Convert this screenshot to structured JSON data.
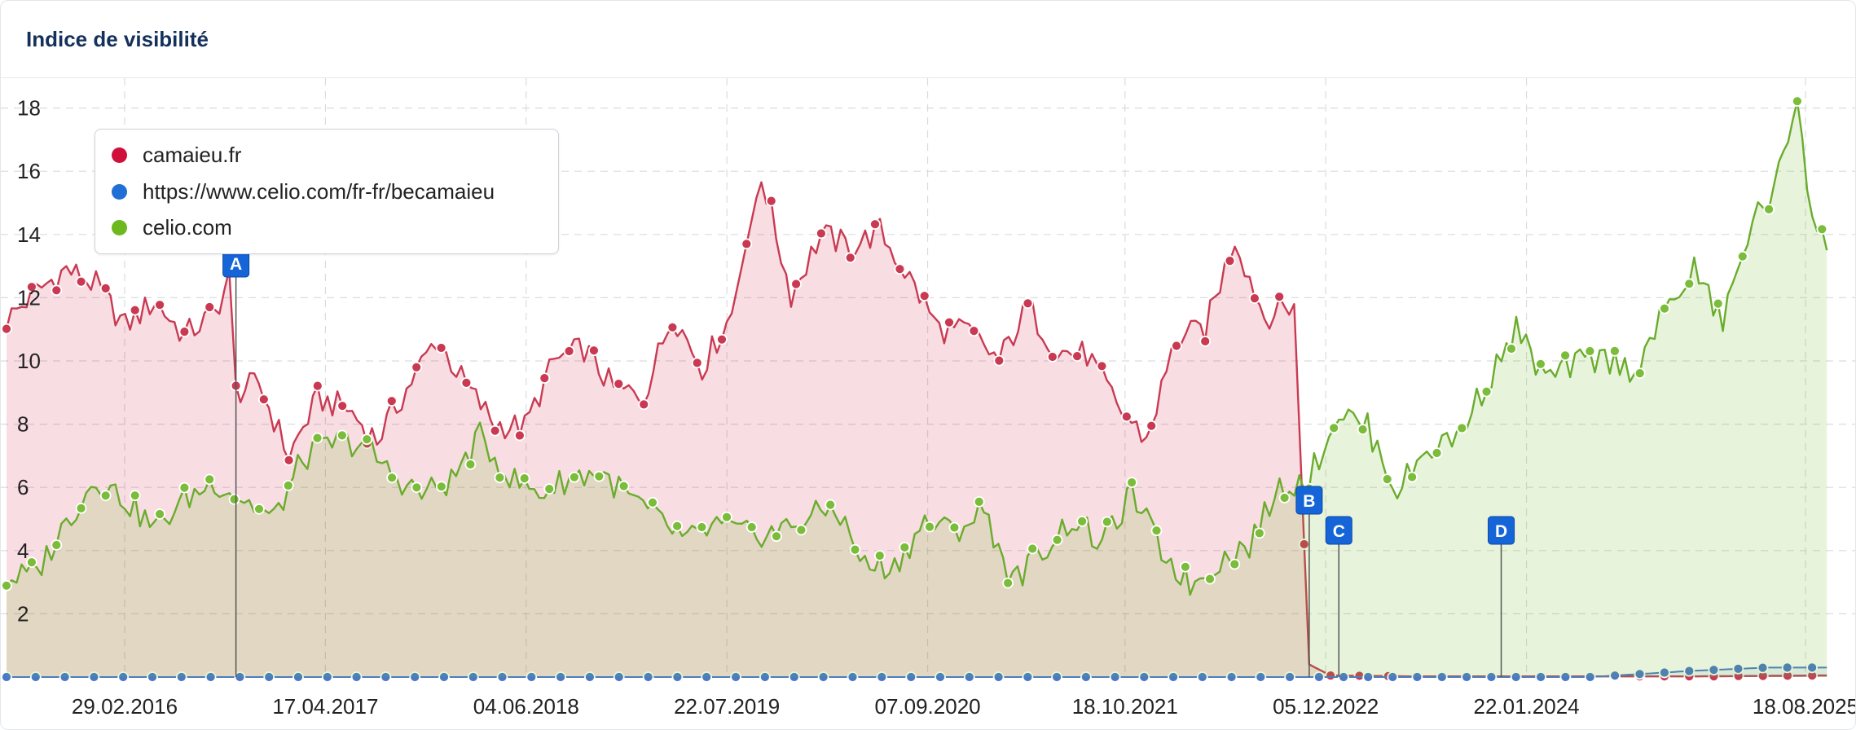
{
  "header": {
    "title": "Indice de visibilité"
  },
  "chart_data": {
    "type": "line",
    "y_ticks": [
      2,
      4,
      6,
      8,
      10,
      12,
      14,
      16,
      18
    ],
    "ylim": [
      0,
      18.6
    ],
    "x_tick_labels": [
      "29.02.2016",
      "17.04.2017",
      "04.06.2018",
      "22.07.2019",
      "07.09.2020",
      "18.10.2021",
      "05.12.2022",
      "22.01.2024",
      "18.08.2025"
    ],
    "grid": true,
    "legend_position": "top-left",
    "series": [
      {
        "name": "camaieu.fr",
        "color": "#d0103a",
        "points": [
          [
            "2015-07-01",
            11.3
          ],
          [
            "2015-09-01",
            12.2
          ],
          [
            "2015-11-01",
            12.9
          ],
          [
            "2016-01-01",
            12.4
          ],
          [
            "2016-03-01",
            11.1
          ],
          [
            "2016-05-01",
            11.9
          ],
          [
            "2016-07-01",
            10.8
          ],
          [
            "2016-09-01",
            11.5
          ],
          [
            "2016-10-01",
            12.6
          ],
          [
            "2016-10-15",
            9.0
          ],
          [
            "2016-12-01",
            9.3
          ],
          [
            "2017-02-01",
            7.0
          ],
          [
            "2017-04-01",
            8.8
          ],
          [
            "2017-06-01",
            8.5
          ],
          [
            "2017-08-01",
            7.5
          ],
          [
            "2017-10-01",
            9.1
          ],
          [
            "2017-12-01",
            10.7
          ],
          [
            "2018-02-01",
            9.2
          ],
          [
            "2018-04-01",
            8.0
          ],
          [
            "2018-06-01",
            7.9
          ],
          [
            "2018-08-01",
            10.0
          ],
          [
            "2018-10-01",
            10.4
          ],
          [
            "2018-12-01",
            9.1
          ],
          [
            "2019-02-01",
            8.9
          ],
          [
            "2019-04-01",
            11.5
          ],
          [
            "2019-06-01",
            9.8
          ],
          [
            "2019-08-01",
            11.5
          ],
          [
            "2019-10-01",
            15.9
          ],
          [
            "2019-12-01",
            12.1
          ],
          [
            "2020-02-01",
            14.0
          ],
          [
            "2020-04-01",
            13.6
          ],
          [
            "2020-06-01",
            14.1
          ],
          [
            "2020-08-01",
            12.6
          ],
          [
            "2020-10-01",
            11.0
          ],
          [
            "2020-12-01",
            10.9
          ],
          [
            "2021-02-01",
            10.0
          ],
          [
            "2021-04-01",
            11.7
          ],
          [
            "2021-06-01",
            10.3
          ],
          [
            "2021-08-01",
            10.2
          ],
          [
            "2021-10-01",
            8.6
          ],
          [
            "2021-12-01",
            7.5
          ],
          [
            "2022-02-01",
            10.7
          ],
          [
            "2022-04-01",
            11.0
          ],
          [
            "2022-06-01",
            13.9
          ],
          [
            "2022-08-01",
            11.4
          ],
          [
            "2022-10-01",
            11.8
          ],
          [
            "2022-11-01",
            0.4
          ],
          [
            "2022-12-15",
            0.05
          ],
          [
            "2023-06-01",
            0.02
          ],
          [
            "2024-06-01",
            0.02
          ],
          [
            "2025-01-01",
            0.02
          ],
          [
            "2025-10-01",
            0.05
          ]
        ]
      },
      {
        "name": "https://www.celio.com/fr-fr/becamaieu",
        "color": "#1f6fd6",
        "points": [
          [
            "2015-07-01",
            0.0
          ],
          [
            "2017-01-01",
            0.0
          ],
          [
            "2019-01-01",
            0.0
          ],
          [
            "2021-01-01",
            0.0
          ],
          [
            "2022-11-01",
            0.0
          ],
          [
            "2023-06-01",
            0.0
          ],
          [
            "2024-06-01",
            0.0
          ],
          [
            "2025-01-01",
            0.2
          ],
          [
            "2025-06-01",
            0.3
          ],
          [
            "2025-10-01",
            0.3
          ]
        ]
      },
      {
        "name": "celio.com",
        "color": "#6cb81e",
        "points": [
          [
            "2015-07-01",
            3.1
          ],
          [
            "2015-09-01",
            3.3
          ],
          [
            "2015-11-01",
            4.9
          ],
          [
            "2016-01-01",
            6.3
          ],
          [
            "2016-03-01",
            5.6
          ],
          [
            "2016-05-01",
            4.7
          ],
          [
            "2016-07-01",
            5.6
          ],
          [
            "2016-09-01",
            6.2
          ],
          [
            "2016-11-01",
            5.6
          ],
          [
            "2017-01-01",
            5.0
          ],
          [
            "2017-03-01",
            6.9
          ],
          [
            "2017-05-01",
            7.4
          ],
          [
            "2017-07-01",
            7.4
          ],
          [
            "2017-09-01",
            6.4
          ],
          [
            "2017-11-01",
            5.8
          ],
          [
            "2018-01-01",
            6.2
          ],
          [
            "2018-03-01",
            7.6
          ],
          [
            "2018-05-01",
            6.3
          ],
          [
            "2018-07-01",
            5.8
          ],
          [
            "2018-09-01",
            6.3
          ],
          [
            "2018-11-01",
            6.5
          ],
          [
            "2019-01-01",
            5.7
          ],
          [
            "2019-03-01",
            5.0
          ],
          [
            "2019-05-01",
            4.3
          ],
          [
            "2019-07-01",
            4.8
          ],
          [
            "2019-09-01",
            4.5
          ],
          [
            "2019-11-01",
            4.6
          ],
          [
            "2020-01-01",
            5.0
          ],
          [
            "2020-03-01",
            5.4
          ],
          [
            "2020-05-01",
            3.5
          ],
          [
            "2020-07-01",
            3.5
          ],
          [
            "2020-09-01",
            4.9
          ],
          [
            "2020-11-01",
            4.6
          ],
          [
            "2021-01-01",
            5.3
          ],
          [
            "2021-03-01",
            3.0
          ],
          [
            "2021-05-01",
            4.0
          ],
          [
            "2021-07-01",
            5.0
          ],
          [
            "2021-09-01",
            4.2
          ],
          [
            "2021-11-01",
            5.8
          ],
          [
            "2022-01-01",
            4.0
          ],
          [
            "2022-03-01",
            2.9
          ],
          [
            "2022-05-01",
            3.7
          ],
          [
            "2022-07-01",
            4.2
          ],
          [
            "2022-09-01",
            6.0
          ],
          [
            "2022-11-01",
            6.3
          ],
          [
            "2023-01-01",
            8.4
          ],
          [
            "2023-03-01",
            7.9
          ],
          [
            "2023-05-01",
            5.9
          ],
          [
            "2023-07-01",
            7.2
          ],
          [
            "2023-09-01",
            7.6
          ],
          [
            "2023-11-01",
            9.3
          ],
          [
            "2024-01-01",
            11.0
          ],
          [
            "2024-03-01",
            9.4
          ],
          [
            "2024-05-01",
            9.9
          ],
          [
            "2024-07-01",
            10.1
          ],
          [
            "2024-09-01",
            9.7
          ],
          [
            "2024-11-01",
            11.5
          ],
          [
            "2025-01-01",
            12.9
          ],
          [
            "2025-03-01",
            11.2
          ],
          [
            "2025-05-01",
            14.5
          ],
          [
            "2025-06-15",
            15.3
          ],
          [
            "2025-08-01",
            18.4
          ],
          [
            "2025-09-01",
            14.5
          ],
          [
            "2025-10-01",
            13.5
          ]
        ]
      }
    ],
    "annotations": [
      {
        "label": "A",
        "date": "2016-10-15"
      },
      {
        "label": "B",
        "date": "2022-11-01"
      },
      {
        "label": "C",
        "date": "2023-01-01"
      },
      {
        "label": "D",
        "date": "2023-12-01"
      }
    ]
  }
}
